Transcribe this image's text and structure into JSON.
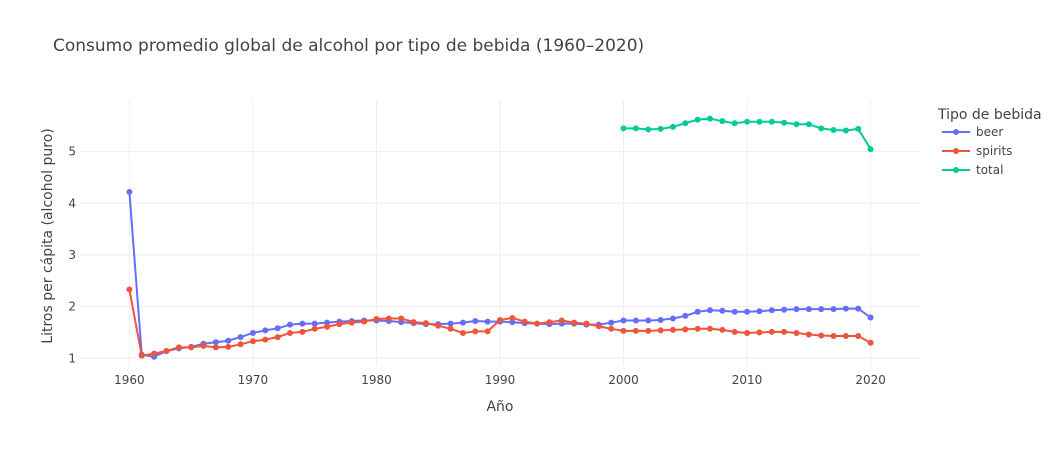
{
  "chart_data": {
    "type": "line",
    "title": "Consumo promedio global de alcohol por tipo de bebida (1960–2020)",
    "xlabel": "Año",
    "ylabel": "Litros per cápita (alcohol puro)",
    "xlim": [
      1956,
      2024
    ],
    "ylim": [
      0.85,
      6.0
    ],
    "x_ticks": [
      1960,
      1970,
      1980,
      1990,
      2000,
      2010,
      2020
    ],
    "y_ticks": [
      1,
      2,
      3,
      4,
      5
    ],
    "grid": true,
    "legend": {
      "title": "Tipo de bebida",
      "placement": "right"
    },
    "series": [
      {
        "name": "beer",
        "color": "#636efa",
        "x": [
          1960,
          1961,
          1962,
          1963,
          1964,
          1965,
          1966,
          1967,
          1968,
          1969,
          1970,
          1971,
          1972,
          1973,
          1974,
          1975,
          1976,
          1977,
          1978,
          1979,
          1980,
          1981,
          1982,
          1983,
          1984,
          1985,
          1986,
          1987,
          1988,
          1989,
          1990,
          1991,
          1992,
          1993,
          1994,
          1995,
          1996,
          1997,
          1998,
          1999,
          2000,
          2001,
          2002,
          2003,
          2004,
          2005,
          2006,
          2007,
          2008,
          2009,
          2010,
          2011,
          2012,
          2013,
          2014,
          2015,
          2016,
          2017,
          2018,
          2019,
          2020
        ],
        "values": [
          4.22,
          1.07,
          1.03,
          1.14,
          1.19,
          1.22,
          1.28,
          1.31,
          1.34,
          1.41,
          1.49,
          1.54,
          1.58,
          1.65,
          1.67,
          1.67,
          1.69,
          1.71,
          1.72,
          1.73,
          1.73,
          1.72,
          1.7,
          1.68,
          1.66,
          1.66,
          1.67,
          1.69,
          1.72,
          1.71,
          1.71,
          1.7,
          1.68,
          1.67,
          1.66,
          1.67,
          1.67,
          1.65,
          1.65,
          1.69,
          1.73,
          1.73,
          1.73,
          1.74,
          1.77,
          1.82,
          1.9,
          1.93,
          1.92,
          1.9,
          1.9,
          1.91,
          1.93,
          1.94,
          1.95,
          1.95,
          1.95,
          1.95,
          1.96,
          1.96,
          1.79
        ]
      },
      {
        "name": "spirits",
        "color": "#ef553b",
        "x": [
          1960,
          1961,
          1962,
          1963,
          1964,
          1965,
          1966,
          1967,
          1968,
          1969,
          1970,
          1971,
          1972,
          1973,
          1974,
          1975,
          1976,
          1977,
          1978,
          1979,
          1980,
          1981,
          1982,
          1983,
          1984,
          1985,
          1986,
          1987,
          1988,
          1989,
          1990,
          1991,
          1992,
          1993,
          1994,
          1995,
          1996,
          1997,
          1998,
          1999,
          2000,
          2001,
          2002,
          2003,
          2004,
          2005,
          2006,
          2007,
          2008,
          2009,
          2010,
          2011,
          2012,
          2013,
          2014,
          2015,
          2016,
          2017,
          2018,
          2019,
          2020
        ],
        "values": [
          2.33,
          1.05,
          1.09,
          1.14,
          1.21,
          1.21,
          1.24,
          1.21,
          1.22,
          1.27,
          1.33,
          1.36,
          1.41,
          1.49,
          1.51,
          1.57,
          1.61,
          1.66,
          1.69,
          1.71,
          1.76,
          1.77,
          1.77,
          1.7,
          1.68,
          1.63,
          1.57,
          1.49,
          1.52,
          1.52,
          1.74,
          1.78,
          1.71,
          1.67,
          1.7,
          1.73,
          1.69,
          1.67,
          1.62,
          1.57,
          1.53,
          1.53,
          1.53,
          1.54,
          1.55,
          1.56,
          1.57,
          1.57,
          1.55,
          1.51,
          1.49,
          1.5,
          1.51,
          1.51,
          1.49,
          1.46,
          1.44,
          1.43,
          1.43,
          1.43,
          1.3
        ]
      },
      {
        "name": "total",
        "color": "#00cc96",
        "x": [
          2000,
          2001,
          2002,
          2003,
          2004,
          2005,
          2006,
          2007,
          2008,
          2009,
          2010,
          2011,
          2012,
          2013,
          2014,
          2015,
          2016,
          2017,
          2018,
          2019,
          2020
        ],
        "values": [
          5.45,
          5.45,
          5.43,
          5.44,
          5.48,
          5.55,
          5.62,
          5.64,
          5.59,
          5.55,
          5.58,
          5.58,
          5.58,
          5.56,
          5.53,
          5.53,
          5.45,
          5.42,
          5.41,
          5.44,
          5.05
        ]
      }
    ]
  }
}
